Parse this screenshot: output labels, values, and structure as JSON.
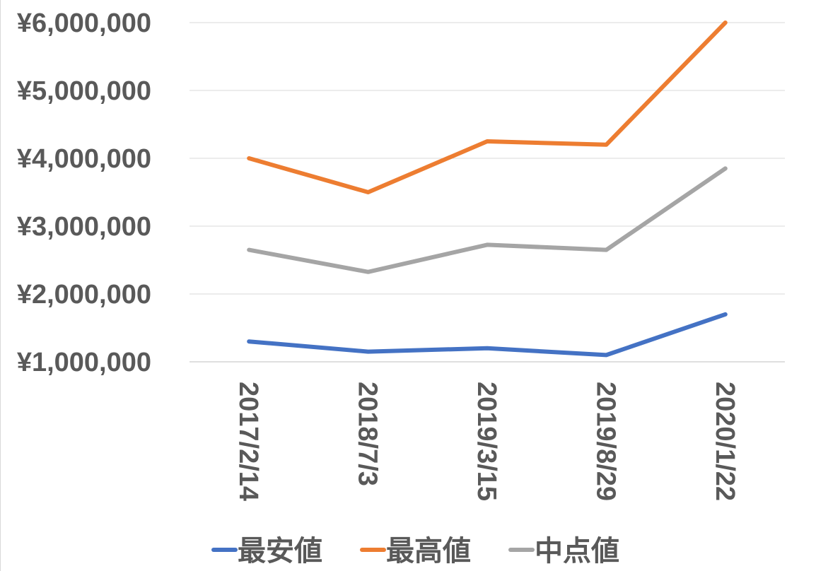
{
  "chart_data": {
    "type": "line",
    "categories": [
      "2017/2/14",
      "2018/7/3",
      "2019/3/15",
      "2019/8/29",
      "2020/1/22"
    ],
    "y_tick_labels": [
      "¥1,000,000",
      "¥2,000,000",
      "¥3,000,000",
      "¥4,000,000",
      "¥5,000,000",
      "¥6,000,000"
    ],
    "y_ticks": [
      1000000,
      2000000,
      3000000,
      4000000,
      5000000,
      6000000
    ],
    "ylim": [
      1000000,
      6000000
    ],
    "grid": true,
    "legend_position": "bottom",
    "series": [
      {
        "name": "最安値",
        "color": "#4472C4",
        "values": [
          1300000,
          1150000,
          1200000,
          1100000,
          1700000
        ]
      },
      {
        "name": "最高値",
        "color": "#ED7D31",
        "values": [
          4000000,
          3500000,
          4250000,
          4200000,
          6000000
        ]
      },
      {
        "name": "中点値",
        "color": "#A5A5A5",
        "values": [
          2650000,
          2325000,
          2725000,
          2650000,
          3850000
        ]
      }
    ]
  }
}
